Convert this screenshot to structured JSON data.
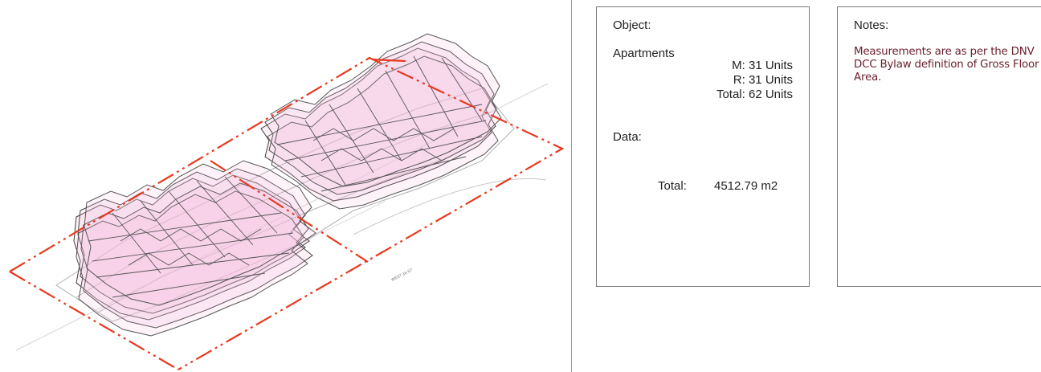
{
  "drawing": {
    "street_label": "WEST 16 ST",
    "colors": {
      "property_line": "#e8391f",
      "floor_fill": "#f4bfe0",
      "outline": "#333333",
      "ghost": "#9a9a9a"
    }
  },
  "object_panel": {
    "object_label": "Object:",
    "apartments_label": "Apartments",
    "market_units": "M: 31 Units",
    "rental_units": "R: 31 Units",
    "total_units": "Total: 62 Units",
    "data_label": "Data:",
    "total_label": "Total:",
    "total_area": "4512.79 m2"
  },
  "notes_panel": {
    "notes_label": "Notes:",
    "notes_text": "Measurements are as per the DNV DCC Bylaw definition of Gross Floor Area."
  }
}
